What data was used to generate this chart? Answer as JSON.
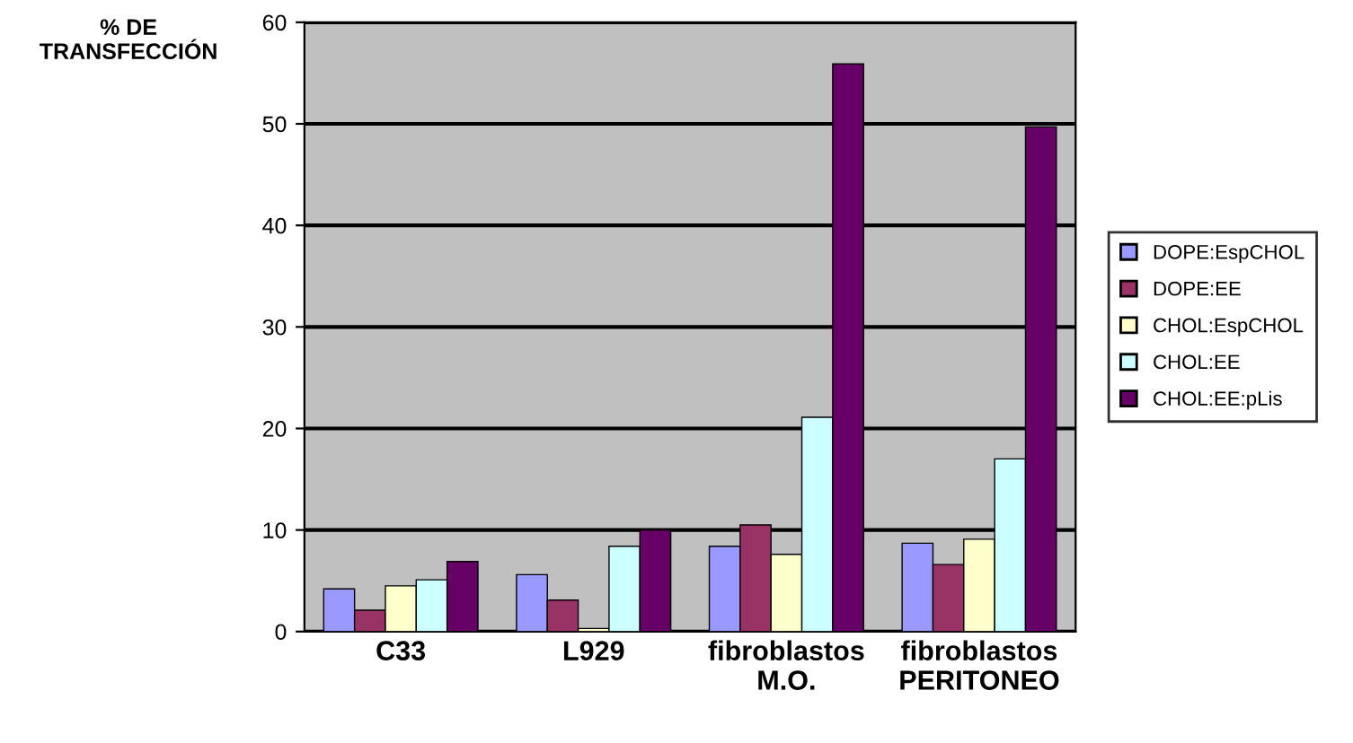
{
  "chart_data": {
    "type": "bar",
    "ylabel": "% DE\nTRANSFECCIÓN",
    "categories": [
      "C33",
      "L929",
      "fibroblastos\nM.O.",
      "fibroblastos\nPERITONEO"
    ],
    "series": [
      {
        "name": "DOPE:EspCHOL",
        "color": "#9999ff",
        "values": [
          4.2,
          5.6,
          8.4,
          8.7
        ]
      },
      {
        "name": "DOPE:EE",
        "color": "#993366",
        "values": [
          2.1,
          3.1,
          10.5,
          6.6
        ]
      },
      {
        "name": "CHOL:EspCHOL",
        "color": "#ffffcc",
        "values": [
          4.5,
          0.3,
          7.6,
          9.1
        ]
      },
      {
        "name": "CHOL:EE",
        "color": "#ccffff",
        "values": [
          5.1,
          8.4,
          21.1,
          17
        ]
      },
      {
        "name": "CHOL:EE:pLis",
        "color": "#660066",
        "values": [
          6.9,
          10,
          55.9,
          49.7
        ]
      }
    ],
    "ylim": [
      0,
      60
    ],
    "yticks": [
      0,
      10,
      20,
      30,
      40,
      50,
      60
    ],
    "grid": "y",
    "legend": "right"
  }
}
